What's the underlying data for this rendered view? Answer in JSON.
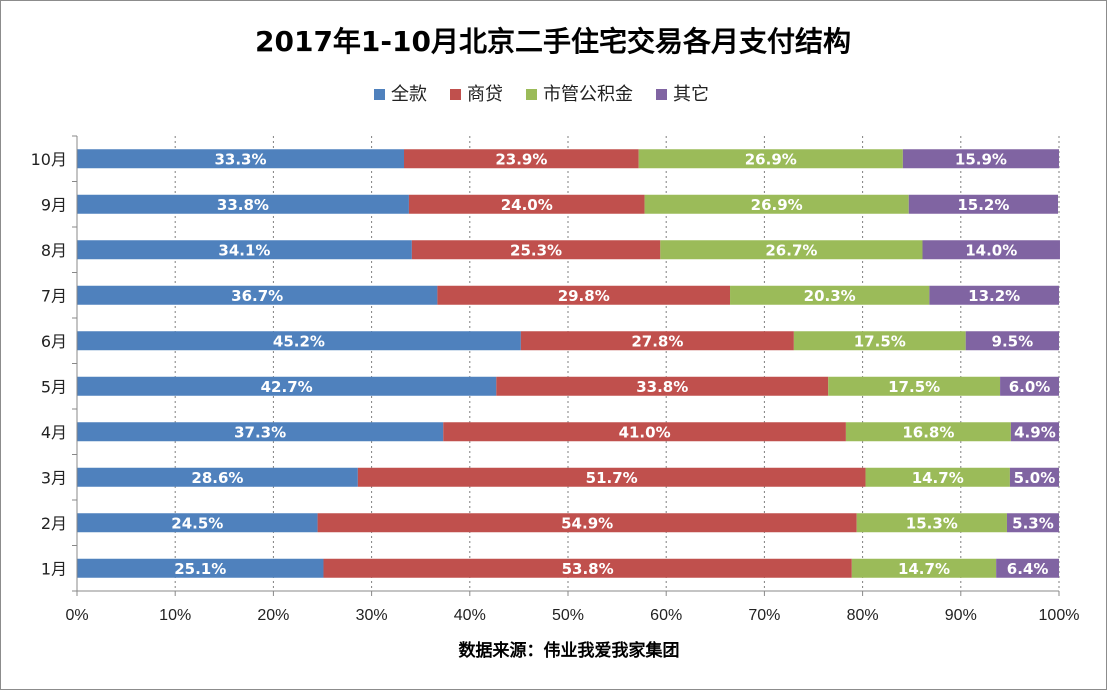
{
  "chart_data": {
    "type": "bar",
    "orientation": "horizontal",
    "stacked": "percent",
    "title": "2017年1-10月北京二手住宅交易各月支付结构",
    "source_note": "数据来源：伟业我爱我家集团",
    "categories": [
      "10月",
      "9月",
      "8月",
      "7月",
      "6月",
      "5月",
      "4月",
      "3月",
      "2月",
      "1月"
    ],
    "series": [
      {
        "name": "全款",
        "color": "#4F81BD",
        "values": [
          33.3,
          33.8,
          34.1,
          36.7,
          45.2,
          42.7,
          37.3,
          28.6,
          24.5,
          25.1
        ],
        "labels": [
          "33.3%",
          "33.8%",
          "34.1%",
          "36.7%",
          "45.2%",
          "42.7%",
          "37.3%",
          "28.6%",
          "24.5%",
          "25.1%"
        ]
      },
      {
        "name": "商贷",
        "color": "#C0504D",
        "values": [
          23.9,
          24.0,
          25.3,
          29.8,
          27.8,
          33.8,
          41.0,
          51.7,
          54.9,
          53.8
        ],
        "labels": [
          "23.9%",
          "24.0%",
          "25.3%",
          "29.8%",
          "27.8%",
          "33.8%",
          "41.0%",
          "51.7%",
          "54.9%",
          "53.8%"
        ]
      },
      {
        "name": "市管公积金",
        "color": "#9BBB59",
        "values": [
          26.9,
          26.9,
          26.7,
          20.3,
          17.5,
          17.5,
          16.8,
          14.7,
          15.3,
          14.7
        ],
        "labels": [
          "26.9%",
          "26.9%",
          "26.7%",
          "20.3%",
          "17.5%",
          "17.5%",
          "16.8%",
          "14.7%",
          "15.3%",
          "14.7%"
        ]
      },
      {
        "name": "其它",
        "color": "#8064A2",
        "values": [
          15.9,
          15.2,
          14.0,
          13.2,
          9.5,
          6.0,
          4.9,
          5.0,
          5.3,
          6.4
        ],
        "labels": [
          "15.9%",
          "15.2%",
          "14.0%",
          "13.2%",
          "9.5%",
          "6.0%",
          "4.9%",
          "5.0%",
          "5.3%",
          "6.4%"
        ]
      }
    ],
    "x_ticks": [
      "0%",
      "10%",
      "20%",
      "30%",
      "40%",
      "50%",
      "60%",
      "70%",
      "80%",
      "90%",
      "100%"
    ],
    "xlim": [
      0,
      100
    ],
    "grid": "vertical-dotted",
    "legend_position": "top"
  }
}
